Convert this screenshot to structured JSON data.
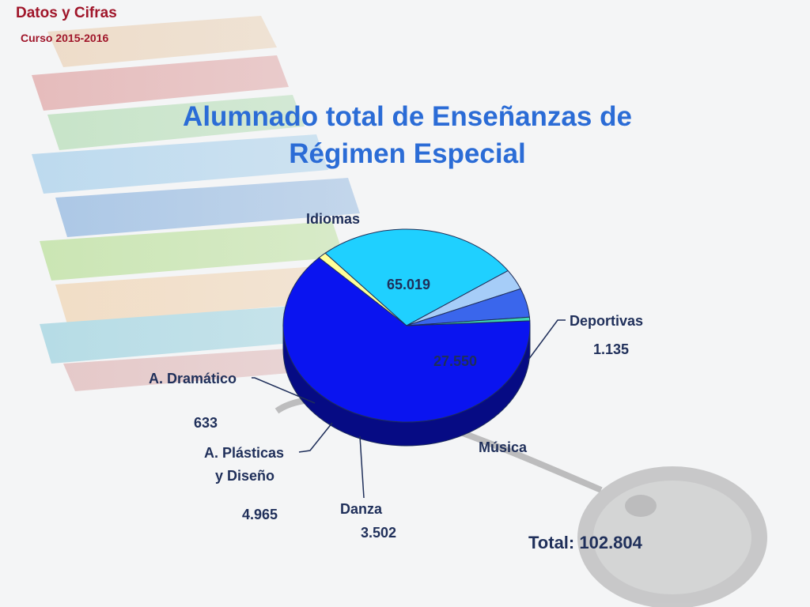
{
  "header": {
    "title": "Datos y Cifras",
    "subtitle": "Curso 2015-2016"
  },
  "chart_data": {
    "type": "pie",
    "title_line1": "Alumnado total de Enseñanzas de",
    "title_line2": "Régimen Especial",
    "slices": [
      {
        "label": "Idiomas",
        "value_label": "65.019",
        "value": 65019,
        "color": "#0a14f0"
      },
      {
        "label": "Deportivas",
        "value_label": "1.135",
        "value": 1135,
        "color": "#ffff99"
      },
      {
        "label": "Música",
        "value_label": "27.550",
        "value": 27550,
        "color": "#1fd0ff"
      },
      {
        "label": "Danza",
        "value_label": "3.502",
        "value": 3502,
        "color": "#a6cdf8"
      },
      {
        "label_line1": "A. Plásticas",
        "label_line2": "y Diseño",
        "value_label": "4.965",
        "value": 4965,
        "color": "#3a66ec"
      },
      {
        "label": "A. Dramático",
        "value_label": "633",
        "value": 633,
        "color": "#3ed6b4"
      }
    ],
    "total_label": "Total: 102.804",
    "legend": "none"
  }
}
